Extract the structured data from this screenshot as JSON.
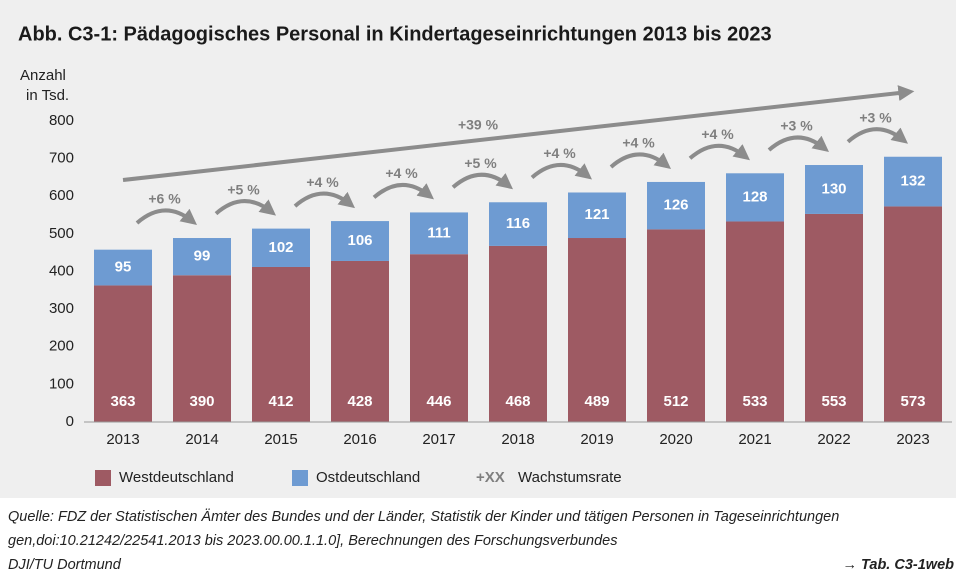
{
  "chart_data": {
    "type": "stacked_bar",
    "title": "Abb. C3-1:  Pädagogisches Personal in Kindertageseinrichtungen 2013 bis 2023",
    "y_label_lines": [
      "Anzahl",
      "in Tsd."
    ],
    "categories": [
      "2013",
      "2014",
      "2015",
      "2016",
      "2017",
      "2018",
      "2019",
      "2020",
      "2021",
      "2022",
      "2023"
    ],
    "series": [
      {
        "name": "Westdeutschland",
        "color": "#9e5a63",
        "values": [
          363,
          390,
          412,
          428,
          446,
          468,
          489,
          512,
          533,
          553,
          573
        ]
      },
      {
        "name": "Ostdeutschland",
        "color": "#6e9bd2",
        "values": [
          95,
          99,
          102,
          106,
          111,
          116,
          121,
          126,
          128,
          130,
          132
        ]
      }
    ],
    "ylim": [
      0,
      800
    ],
    "yticks": [
      0,
      100,
      200,
      300,
      400,
      500,
      600,
      700,
      800
    ],
    "growth_labels": [
      "+6 %",
      "+5 %",
      "+4 %",
      "+4 %",
      "+5 %",
      "+4 %",
      "+4 %",
      "+4 %",
      "+3 %",
      "+3 %"
    ],
    "total_growth_label": "+39 %",
    "growth_color": "#8c8c8c",
    "growth_legend_symbol": "+XX",
    "growth_legend_label": "Wachstumsrate",
    "source_lines": [
      "Quelle: FDZ der Statistischen Ämter des Bundes und der Länder, Statistik der Kinder und tätigen Personen in Tageseinrichtungen",
      "gen,doi:10.21242/22541.2013 bis 2023.00.00.1.1.0], Berechnungen des Forschungsverbundes",
      "DJI/TU Dortmund"
    ],
    "reference": "→ Tab. C3-1web"
  }
}
